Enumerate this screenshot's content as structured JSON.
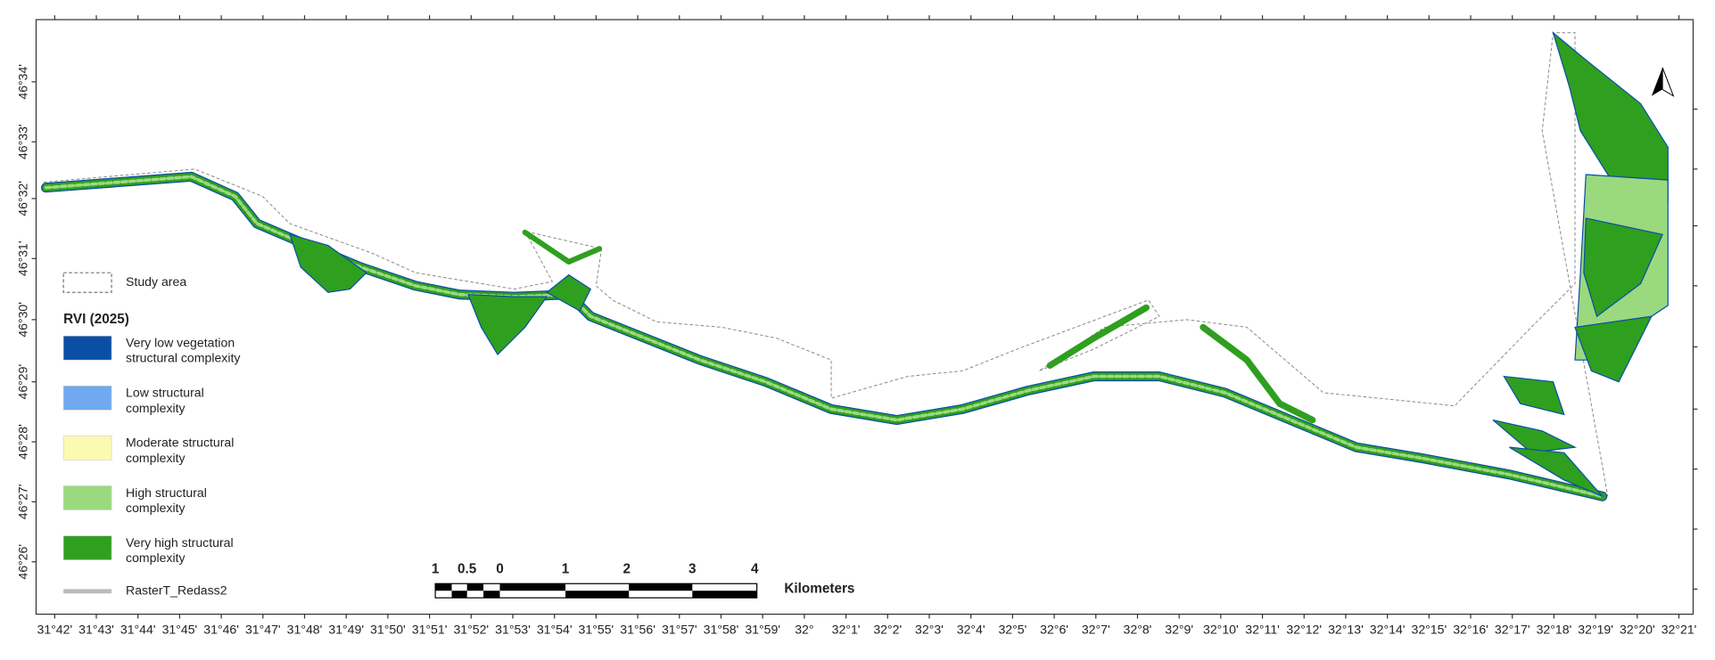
{
  "map": {
    "x_labels": [
      "31°42'",
      "31°43'",
      "31°44'",
      "31°45'",
      "31°46'",
      "31°47'",
      "31°48'",
      "31°49'",
      "31°50'",
      "31°51'",
      "31°52'",
      "31°53'",
      "31°54'",
      "31°55'",
      "31°56'",
      "31°57'",
      "31°58'",
      "31°59'",
      "32°",
      "32°1'",
      "32°2'",
      "32°3'",
      "32°4'",
      "32°5'",
      "32°6'",
      "32°7'",
      "32°8'",
      "32°9'",
      "32°10'",
      "32°11'",
      "32°12'",
      "32°13'",
      "32°14'",
      "32°15'",
      "32°16'",
      "32°17'",
      "32°18'",
      "32°19'",
      "32°20'",
      "32°21'"
    ],
    "y_labels": [
      "46°34'",
      "46°33'",
      "46°32'",
      "46°31'",
      "46°30'",
      "46°29'",
      "46°28'",
      "46°27'",
      "46°26'"
    ],
    "legend": {
      "study_area": "Study area",
      "title": "RVI (2025)",
      "items": [
        {
          "label": [
            "Very low vegetation",
            "structural complexity"
          ],
          "color": "#0b4ea6"
        },
        {
          "label": [
            "Low structural",
            "complexity"
          ],
          "color": "#70a9ef"
        },
        {
          "label": [
            "Moderate structural",
            "complexity"
          ],
          "color": "#fcf9b2"
        },
        {
          "label": [
            "High structural",
            "complexity"
          ],
          "color": "#9bd97f"
        },
        {
          "label": [
            "Very high structural",
            "complexity"
          ],
          "color": "#2f9f1f"
        }
      ],
      "raster": "RasterT_Redass2"
    },
    "scale_bar": {
      "labels": [
        "1",
        "0.5",
        "0",
        "1",
        "2",
        "3",
        "4"
      ],
      "unit": "Kilometers"
    }
  }
}
